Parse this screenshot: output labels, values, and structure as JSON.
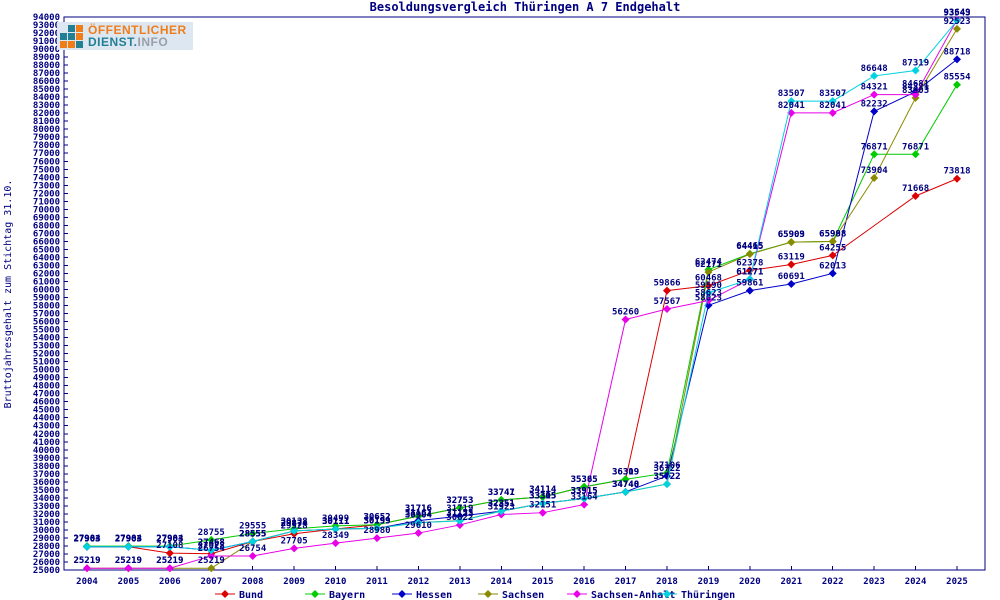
{
  "title": "Besoldungsvergleich Thüringen A 7 Endgehalt",
  "y_axis_label": "Bruttojahresgehalt zum Stichtag 31.10.",
  "logo": {
    "line1": "ÖFFENTLICHER",
    "line2_dienst": "DIENST.",
    "line2_info": "INFO"
  },
  "chart_data": {
    "type": "line",
    "title": "Besoldungsvergleich Thüringen A 7 Endgehalt",
    "ylabel": "Bruttojahresgehalt zum Stichtag 31.10.",
    "xlabel": "",
    "ylim": [
      25000,
      94000
    ],
    "y_tick_step": 1000,
    "grid": false,
    "legend_position": "bottom",
    "axis_color": "#000080",
    "label_color": "#000080",
    "x": [
      2004,
      2005,
      2006,
      2007,
      2008,
      2009,
      2010,
      2011,
      2012,
      2013,
      2014,
      2015,
      2016,
      2017,
      2018,
      2019,
      2020,
      2021,
      2022,
      2023,
      2024,
      2025
    ],
    "series": [
      {
        "name": "Bund",
        "color": "#dd0000",
        "values": [
          27903,
          27903,
          27108,
          27028,
          28555,
          29528,
          30111,
          30652,
          31716,
          32753,
          33741,
          34114,
          35365,
          36309,
          59866,
          60468,
          62378,
          63119,
          64255,
          null,
          71668,
          73818
        ]
      },
      {
        "name": "Bayern",
        "color": "#00cc00",
        "values": [
          27984,
          27984,
          27984,
          28755,
          29555,
          30138,
          30499,
          30652,
          31716,
          32753,
          33747,
          34114,
          35385,
          36319,
          37106,
          62474,
          64465,
          65903,
          65988,
          76871,
          76871,
          85554
        ]
      },
      {
        "name": "Hessen",
        "color": "#0000c8",
        "values": [
          27903,
          27903,
          27903,
          27468,
          28555,
          29874,
          30111,
          30199,
          31161,
          31719,
          32351,
          33315,
          33915,
          34748,
          36722,
          58023,
          59861,
          60691,
          62013,
          82232,
          84681,
          88718
        ]
      },
      {
        "name": "Sachsen",
        "color": "#8a8a00",
        "values": [
          25219,
          25219,
          25219,
          25219,
          28555,
          29874,
          30111,
          30199,
          30904,
          31155,
          32351,
          33305,
          33915,
          34740,
          35722,
          62171,
          64415,
          65909,
          65998,
          73904,
          83903,
          92523
        ]
      },
      {
        "name": "Sachsen-Anhalt",
        "color": "#e800e8",
        "values": [
          25219,
          25219,
          25219,
          26754,
          26754,
          27705,
          28349,
          28980,
          29610,
          30622,
          31923,
          32151,
          33164,
          56260,
          57567,
          58623,
          61271,
          82041,
          82041,
          84321,
          84321,
          93649
        ]
      },
      {
        "name": "Thüringen",
        "color": "#00d2e0",
        "values": [
          27903,
          27903,
          27903,
          27468,
          28555,
          29874,
          30111,
          30199,
          30904,
          31123,
          32351,
          33305,
          33915,
          34740,
          35722,
          59590,
          61271,
          83507,
          83507,
          86648,
          87319,
          93543
        ]
      }
    ]
  }
}
